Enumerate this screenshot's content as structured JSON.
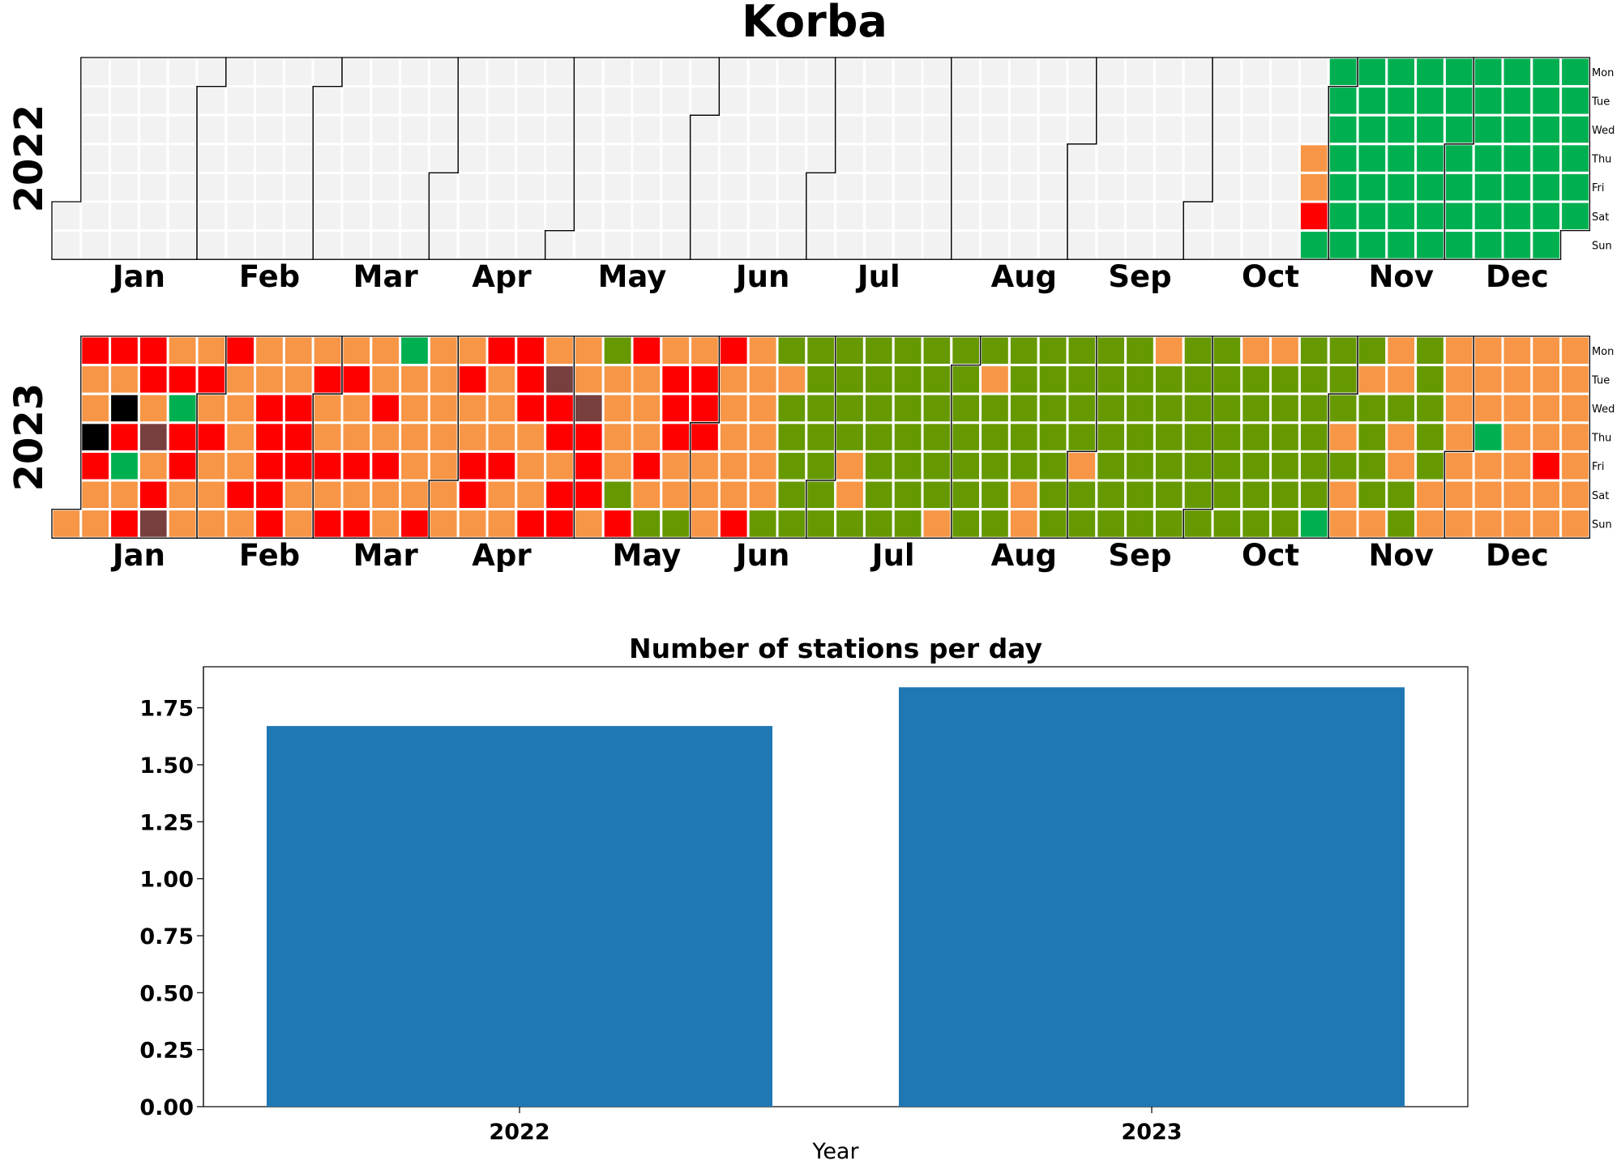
{
  "title": "Korba",
  "calendars": [
    {
      "year": 2022,
      "label": "2022"
    },
    {
      "year": 2023,
      "label": "2023"
    }
  ],
  "months": [
    "Jan",
    "Feb",
    "Mar",
    "Apr",
    "May",
    "Jun",
    "Jul",
    "Aug",
    "Sep",
    "Oct",
    "Nov",
    "Dec"
  ],
  "weekdays": [
    "Mon",
    "Tue",
    "Wed",
    "Thu",
    "Fri",
    "Sat",
    "Sun"
  ],
  "colors": {
    "empty": "#f2f2f2",
    "good": "#00b050",
    "satisfactory": "#669900",
    "moderate": "#f79646",
    "poor": "#ff0000",
    "very_poor": "#783f3f",
    "bar": "#1f77b4"
  },
  "chart_data": {
    "type": "bar",
    "title": "Number of stations per day",
    "categories": [
      "2022",
      "2023"
    ],
    "values": [
      1.67,
      1.84
    ],
    "xlabel": "Year",
    "ylabel": "",
    "ylim": [
      0,
      1.93
    ],
    "yticks": [
      "0.00",
      "0.25",
      "0.50",
      "0.75",
      "1.00",
      "1.25",
      "1.50",
      "1.75"
    ]
  }
}
